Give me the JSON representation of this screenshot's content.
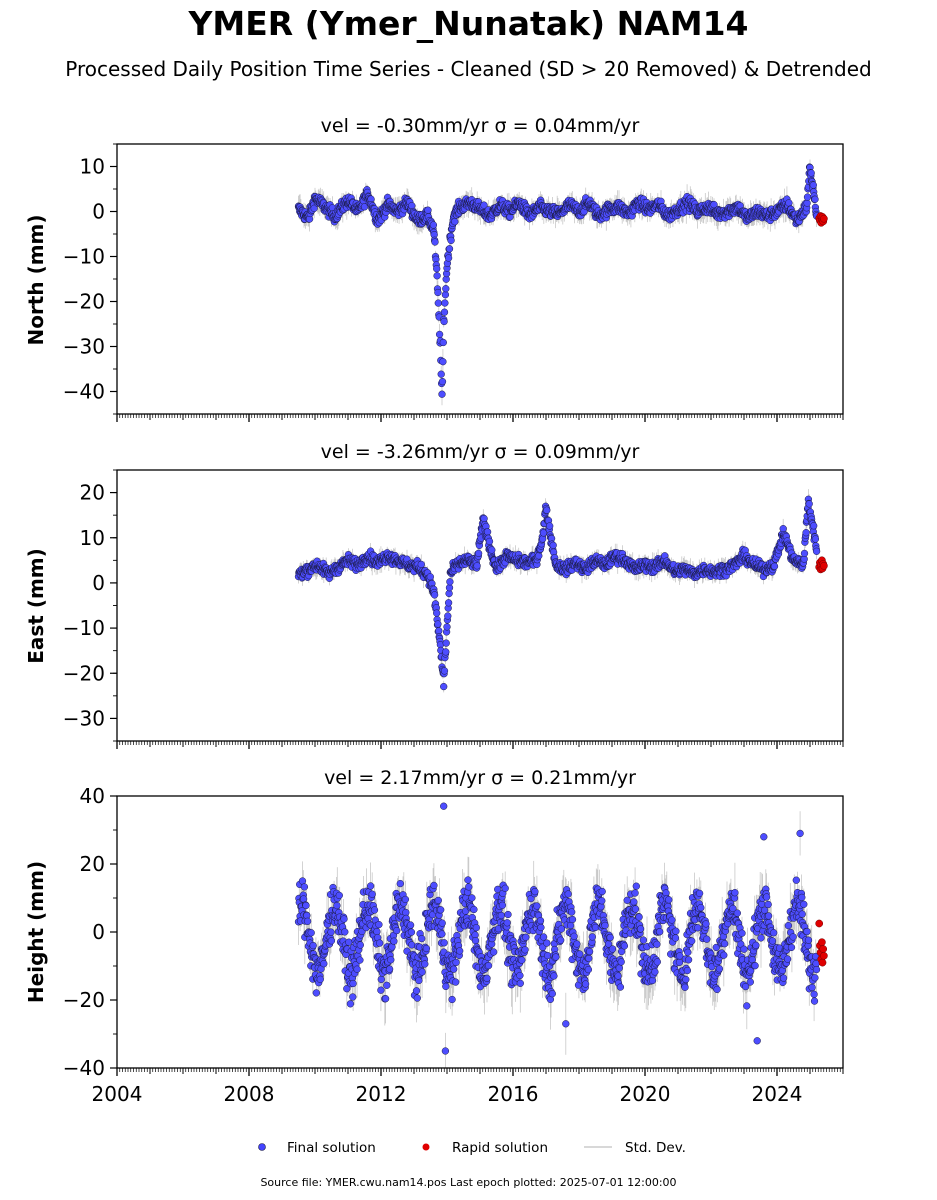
{
  "title": "YMER (Ymer_Nunatak) NAM14",
  "subtitle": "Processed Daily Position Time Series - Cleaned (SD > 20 Removed) & Detrended",
  "footer": "Source file: YMER.cwu.nam14.pos  Last epoch plotted: 2025-07-01 12:00:00",
  "legend": [
    {
      "label": "Final solution",
      "marker": "dot",
      "color": "#4444ff"
    },
    {
      "label": "Rapid solution",
      "marker": "dot",
      "color": "#e00000"
    },
    {
      "label": "Std. Dev.",
      "marker": "line",
      "color": "#cccccc"
    }
  ],
  "colors": {
    "final": "#4d4dff",
    "final_edge": "#1a1a40",
    "rapid": "#e00000",
    "sd": "#9a9a9a",
    "envelope": "#555555"
  },
  "chart_data": [
    {
      "type": "scatter",
      "component": "north",
      "ylabel": "North (mm)",
      "subplot_title": "vel = -0.30mm/yr   σ = 0.04mm/yr",
      "xlim": [
        2004,
        2026
      ],
      "ylim": [
        -45,
        15
      ],
      "yticks": [
        10,
        0,
        -10,
        -20,
        -30,
        -40
      ],
      "xticks": [
        2004,
        2008,
        2012,
        2016,
        2020,
        2024
      ],
      "xtick_labels_shown": false,
      "grid": false,
      "series": [
        {
          "name": "Final solution",
          "kind": "final",
          "x": [
            2009.5,
            2009.8,
            2010.0,
            2010.3,
            2010.6,
            2011.0,
            2011.3,
            2011.6,
            2011.9,
            2012.2,
            2012.5,
            2012.8,
            2013.1,
            2013.4,
            2013.6,
            2013.7,
            2013.8,
            2013.85,
            2013.9,
            2014.0,
            2014.1,
            2014.2,
            2014.4,
            2014.7,
            2015.0,
            2015.3,
            2015.6,
            2015.9,
            2016.2,
            2016.5,
            2016.8,
            2017.1,
            2017.4,
            2017.7,
            2018.0,
            2018.3,
            2018.6,
            2018.9,
            2019.2,
            2019.5,
            2019.8,
            2020.1,
            2020.4,
            2020.7,
            2021.0,
            2021.3,
            2021.6,
            2021.9,
            2022.2,
            2022.5,
            2022.8,
            2023.1,
            2023.4,
            2023.7,
            2024.0,
            2024.3,
            2024.6,
            2024.9,
            2025.0,
            2025.1,
            2025.2
          ],
          "y": [
            0.5,
            -1.5,
            3,
            1,
            -1,
            2.5,
            0,
            4,
            -2,
            1.5,
            0,
            2,
            -2,
            -1,
            -4,
            -15,
            -30,
            -42,
            -25,
            -12,
            -6,
            -1,
            1,
            2,
            0.5,
            -1,
            1.5,
            0,
            2,
            -1,
            1,
            0,
            -0.5,
            1.5,
            0,
            2,
            -1,
            0.5,
            1,
            -0.5,
            2,
            0.5,
            1.5,
            -1,
            0.5,
            2,
            0,
            1,
            -0.5,
            0,
            1,
            -1.5,
            0,
            -1,
            0,
            1.5,
            -2,
            1,
            10,
            5,
            -1
          ],
          "sd": 1.8,
          "scatter_amp": 2.2
        },
        {
          "name": "Rapid solution",
          "kind": "rapid",
          "x": [
            2025.28,
            2025.3,
            2025.32,
            2025.34,
            2025.36,
            2025.38,
            2025.4,
            2025.42
          ],
          "y": [
            -1.5,
            -2,
            -1,
            -2.5,
            -1.8,
            -1.2,
            -2.2,
            -1.6
          ]
        }
      ]
    },
    {
      "type": "scatter",
      "component": "east",
      "ylabel": "East (mm)",
      "subplot_title": "vel = -3.26mm/yr   σ = 0.09mm/yr",
      "xlim": [
        2004,
        2026
      ],
      "ylim": [
        -35,
        25
      ],
      "yticks": [
        20,
        10,
        0,
        -10,
        -20,
        -30
      ],
      "xticks": [
        2004,
        2008,
        2012,
        2016,
        2020,
        2024
      ],
      "xtick_labels_shown": false,
      "grid": false,
      "series": [
        {
          "name": "Final solution",
          "kind": "final",
          "x": [
            2009.5,
            2009.8,
            2010.1,
            2010.4,
            2010.7,
            2011.0,
            2011.3,
            2011.6,
            2011.9,
            2012.2,
            2012.5,
            2012.8,
            2013.1,
            2013.4,
            2013.6,
            2013.7,
            2013.8,
            2013.9,
            2014.0,
            2014.1,
            2014.3,
            2014.6,
            2014.9,
            2015.1,
            2015.3,
            2015.5,
            2015.8,
            2016.1,
            2016.4,
            2016.7,
            2016.9,
            2017.0,
            2017.1,
            2017.3,
            2017.6,
            2017.9,
            2018.2,
            2018.5,
            2018.8,
            2019.1,
            2019.4,
            2019.7,
            2020.0,
            2020.3,
            2020.6,
            2020.9,
            2021.2,
            2021.5,
            2021.8,
            2022.1,
            2022.4,
            2022.7,
            2023.0,
            2023.3,
            2023.6,
            2023.9,
            2024.2,
            2024.5,
            2024.8,
            2024.95,
            2025.1,
            2025.2
          ],
          "y": [
            2,
            3,
            4,
            2,
            3.5,
            5,
            4,
            6,
            4.5,
            6,
            5,
            4,
            3.5,
            2,
            -2,
            -8,
            -14,
            -22,
            -10,
            2,
            4,
            5,
            4,
            14,
            8,
            3,
            6,
            5,
            4.5,
            5,
            10,
            17,
            12,
            4,
            3,
            4.5,
            3,
            5,
            4,
            6,
            5,
            3,
            4,
            3.5,
            5,
            2.5,
            3,
            2,
            3,
            2.5,
            3,
            4,
            6,
            4,
            3,
            4,
            11,
            5,
            4,
            18,
            12,
            7
          ],
          "sd": 1.5,
          "scatter_amp": 2.0
        },
        {
          "name": "Rapid solution",
          "kind": "rapid",
          "x": [
            2025.28,
            2025.3,
            2025.32,
            2025.34,
            2025.36,
            2025.38,
            2025.4,
            2025.42
          ],
          "y": [
            3.5,
            4.5,
            3,
            4,
            5,
            3.2,
            4.2,
            3.8
          ]
        }
      ]
    },
    {
      "type": "scatter",
      "component": "height",
      "ylabel": "Height (mm)",
      "subplot_title": "vel = 2.17mm/yr   σ = 0.21mm/yr",
      "xlim": [
        2004,
        2026
      ],
      "ylim": [
        -40,
        40
      ],
      "yticks": [
        40,
        20,
        0,
        -20,
        -40
      ],
      "xticks": [
        2004,
        2008,
        2012,
        2016,
        2020,
        2024
      ],
      "xtick_labels": [
        "2004",
        "2008",
        "2012",
        "2016",
        "2020",
        "2024"
      ],
      "xtick_labels_shown": true,
      "grid": false,
      "series": [
        {
          "name": "Final solution",
          "kind": "final",
          "seasonal": true,
          "x_start": 2009.5,
          "x_end": 2025.2,
          "amplitude": 10,
          "offset": -2,
          "scatter_amp": 7,
          "sd": 6,
          "highlights": [
            [
              2013.9,
              37
            ],
            [
              2013.95,
              -35
            ],
            [
              2023.6,
              28
            ],
            [
              2024.7,
              29
            ],
            [
              2023.4,
              -32
            ],
            [
              2017.6,
              -27
            ]
          ]
        },
        {
          "name": "Rapid solution",
          "kind": "rapid",
          "x": [
            2025.28,
            2025.3,
            2025.32,
            2025.34,
            2025.36,
            2025.38,
            2025.4,
            2025.42
          ],
          "y": [
            2.5,
            -4,
            -6,
            -8,
            -3,
            -9,
            -5,
            -7
          ]
        }
      ]
    }
  ]
}
